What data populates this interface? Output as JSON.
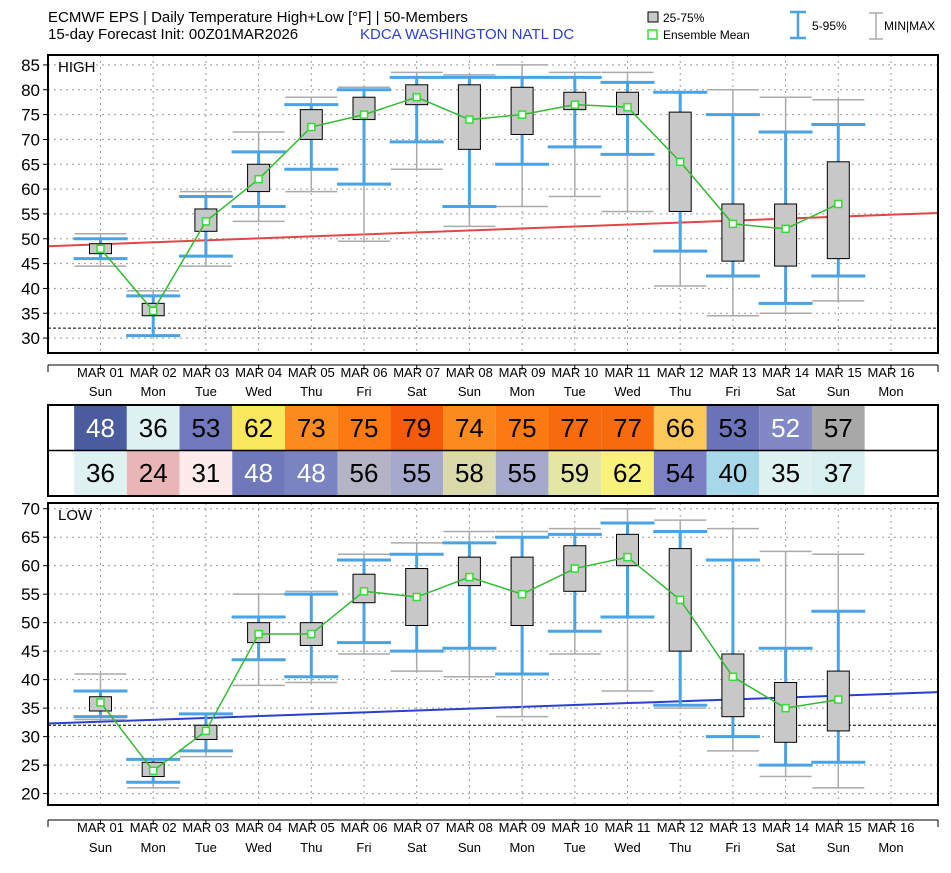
{
  "title": {
    "line1": "ECMWF EPS | Daily Temperature High+Low [°F] | 50-Members",
    "line2": "15-day Forecast Init: 00Z01MAR2026",
    "station": "KDCA  WASHINGTON NATL DC"
  },
  "legend": {
    "box_label": "25-75%",
    "mean_label": "Ensemble Mean",
    "whisker_label": "5-95%",
    "minmax_label": "MIN|MAX"
  },
  "colors": {
    "box_fill": "#c8c8c8",
    "mean_line": "#33bb33",
    "whisker": "#4aa3e6",
    "minmax": "#aaaaaa",
    "high_normal": "#e34646",
    "low_normal": "#2c3fd0"
  },
  "dates": [
    "MAR 01",
    "MAR 02",
    "MAR 03",
    "MAR 04",
    "MAR 05",
    "MAR 06",
    "MAR 07",
    "MAR 08",
    "MAR 09",
    "MAR 10",
    "MAR 11",
    "MAR 12",
    "MAR 13",
    "MAR 14",
    "MAR 15",
    "MAR 16"
  ],
  "weekdays": [
    "Sun",
    "Mon",
    "Tue",
    "Wed",
    "Thu",
    "Fri",
    "Sat",
    "Sun",
    "Mon",
    "Tue",
    "Wed",
    "Thu",
    "Fri",
    "Sat",
    "Sun",
    "Mon"
  ],
  "high_tiles": [
    {
      "value": "48",
      "bg": "#4a5b9e",
      "fg": "#ffffff"
    },
    {
      "value": "36",
      "bg": "#dff2f2",
      "fg": "#000000"
    },
    {
      "value": "53",
      "bg": "#7178bd",
      "fg": "#000000"
    },
    {
      "value": "62",
      "bg": "#f8e85e",
      "fg": "#000000"
    },
    {
      "value": "73",
      "bg": "#fb8a1f",
      "fg": "#000000"
    },
    {
      "value": "75",
      "bg": "#fb7a12",
      "fg": "#000000"
    },
    {
      "value": "79",
      "bg": "#f55b0b",
      "fg": "#000000"
    },
    {
      "value": "74",
      "bg": "#fb8a1f",
      "fg": "#000000"
    },
    {
      "value": "75",
      "bg": "#fb7a12",
      "fg": "#000000"
    },
    {
      "value": "77",
      "bg": "#f86a0e",
      "fg": "#000000"
    },
    {
      "value": "77",
      "bg": "#f86a0e",
      "fg": "#000000"
    },
    {
      "value": "66",
      "bg": "#fbc85a",
      "fg": "#000000"
    },
    {
      "value": "53",
      "bg": "#6a73b8",
      "fg": "#000000"
    },
    {
      "value": "52",
      "bg": "#8288c5",
      "fg": "#ffffff"
    },
    {
      "value": "57",
      "bg": "#a8a8a8",
      "fg": "#000000"
    }
  ],
  "low_tiles": [
    {
      "value": "36",
      "bg": "#dff2f2",
      "fg": "#000000"
    },
    {
      "value": "24",
      "bg": "#e8b6b6",
      "fg": "#000000"
    },
    {
      "value": "31",
      "bg": "#fdebeb",
      "fg": "#000000"
    },
    {
      "value": "48",
      "bg": "#6f79b9",
      "fg": "#ffffff"
    },
    {
      "value": "48",
      "bg": "#7a84c1",
      "fg": "#ffffff"
    },
    {
      "value": "56",
      "bg": "#b4b4c6",
      "fg": "#000000"
    },
    {
      "value": "55",
      "bg": "#a5a9cc",
      "fg": "#000000"
    },
    {
      "value": "58",
      "bg": "#d9d9a9",
      "fg": "#000000"
    },
    {
      "value": "55",
      "bg": "#a5a9cc",
      "fg": "#000000"
    },
    {
      "value": "59",
      "bg": "#e4e6a4",
      "fg": "#000000"
    },
    {
      "value": "62",
      "bg": "#f8f27c",
      "fg": "#000000"
    },
    {
      "value": "54",
      "bg": "#7a7fc3",
      "fg": "#000000"
    },
    {
      "value": "40",
      "bg": "#a6d8ea",
      "fg": "#000000"
    },
    {
      "value": "35",
      "bg": "#dff2f2",
      "fg": "#000000"
    },
    {
      "value": "37",
      "bg": "#d8eff0",
      "fg": "#000000"
    }
  ],
  "chart_data": [
    {
      "type": "box",
      "panel_label": "HIGH",
      "title": "",
      "xlabel": "",
      "ylabel": "",
      "ylim": [
        27,
        87
      ],
      "yticks": [
        30,
        35,
        40,
        45,
        50,
        55,
        60,
        65,
        70,
        75,
        80,
        85
      ],
      "grid": true,
      "freezing_line": 32,
      "categories": [
        "MAR 01",
        "MAR 02",
        "MAR 03",
        "MAR 04",
        "MAR 05",
        "MAR 06",
        "MAR 07",
        "MAR 08",
        "MAR 09",
        "MAR 10",
        "MAR 11",
        "MAR 12",
        "MAR 13",
        "MAR 14",
        "MAR 15"
      ],
      "min": [
        44.5,
        30.5,
        44.5,
        53.5,
        59.5,
        49.5,
        64.0,
        52.5,
        56.5,
        58.5,
        55.5,
        40.5,
        34.5,
        35.0,
        37.5
      ],
      "p5": [
        46.0,
        30.5,
        46.5,
        56.5,
        64.0,
        61.0,
        69.5,
        56.5,
        65.0,
        68.5,
        67.0,
        47.5,
        42.5,
        37.0,
        42.5
      ],
      "p25": [
        47.0,
        34.5,
        51.5,
        59.5,
        70.0,
        74.0,
        77.0,
        68.0,
        71.0,
        76.0,
        75.0,
        55.5,
        45.5,
        44.5,
        46.0
      ],
      "mean": [
        48.0,
        35.5,
        53.5,
        62.0,
        72.5,
        75.0,
        78.5,
        74.0,
        75.0,
        77.0,
        76.5,
        65.5,
        53.0,
        52.0,
        57.0
      ],
      "p75": [
        49.0,
        37.0,
        56.0,
        65.0,
        76.0,
        78.5,
        81.0,
        81.0,
        80.5,
        79.5,
        79.5,
        75.5,
        57.0,
        57.0,
        65.5
      ],
      "p95": [
        50.0,
        38.5,
        58.5,
        67.5,
        77.0,
        80.0,
        82.5,
        82.5,
        82.5,
        82.5,
        81.5,
        79.5,
        75.0,
        71.5,
        73.0
      ],
      "max": [
        51.0,
        39.5,
        59.5,
        71.5,
        78.5,
        80.5,
        83.5,
        83.0,
        85.0,
        83.5,
        83.5,
        79.5,
        80.0,
        78.5,
        78.0
      ],
      "normal": {
        "x_start": 0,
        "x_end": 16,
        "y_start": 48.5,
        "y_end": 55.2
      }
    },
    {
      "type": "box",
      "panel_label": "LOW",
      "title": "",
      "xlabel": "",
      "ylabel": "",
      "ylim": [
        18,
        71
      ],
      "yticks": [
        20,
        25,
        30,
        35,
        40,
        45,
        50,
        55,
        60,
        65,
        70
      ],
      "grid": true,
      "freezing_line": 32,
      "categories": [
        "MAR 01",
        "MAR 02",
        "MAR 03",
        "MAR 04",
        "MAR 05",
        "MAR 06",
        "MAR 07",
        "MAR 08",
        "MAR 09",
        "MAR 10",
        "MAR 11",
        "MAR 12",
        "MAR 13",
        "MAR 14",
        "MAR 15"
      ],
      "min": [
        33.0,
        21.0,
        26.5,
        39.0,
        39.5,
        44.5,
        41.5,
        40.5,
        33.5,
        44.5,
        38.0,
        35.0,
        27.5,
        23.0,
        21.0
      ],
      "p5": [
        33.5,
        22.0,
        27.5,
        43.5,
        40.5,
        46.5,
        45.0,
        45.5,
        41.0,
        48.5,
        51.0,
        35.5,
        30.0,
        25.0,
        25.5
      ],
      "p25": [
        34.5,
        23.0,
        29.5,
        46.5,
        46.0,
        53.5,
        49.5,
        56.5,
        49.5,
        55.5,
        60.0,
        45.0,
        33.5,
        29.0,
        31.0
      ],
      "mean": [
        36.0,
        24.0,
        31.0,
        48.0,
        48.0,
        55.5,
        54.5,
        58.0,
        55.0,
        59.5,
        61.5,
        54.0,
        40.5,
        35.0,
        36.5
      ],
      "p75": [
        37.0,
        25.5,
        32.0,
        50.0,
        50.0,
        58.5,
        59.5,
        61.5,
        61.5,
        63.5,
        65.5,
        63.0,
        44.5,
        39.5,
        41.5
      ],
      "p95": [
        38.0,
        26.0,
        34.0,
        51.0,
        55.0,
        61.0,
        62.0,
        64.0,
        65.0,
        65.5,
        67.5,
        66.0,
        61.0,
        45.5,
        52.0
      ],
      "max": [
        41.0,
        26.0,
        34.0,
        55.0,
        55.5,
        62.0,
        64.0,
        66.0,
        66.0,
        66.5,
        70.0,
        68.0,
        66.5,
        62.5,
        62.0
      ],
      "normal": {
        "x_start": 0,
        "x_end": 16,
        "y_start": 32.3,
        "y_end": 37.8
      }
    }
  ]
}
